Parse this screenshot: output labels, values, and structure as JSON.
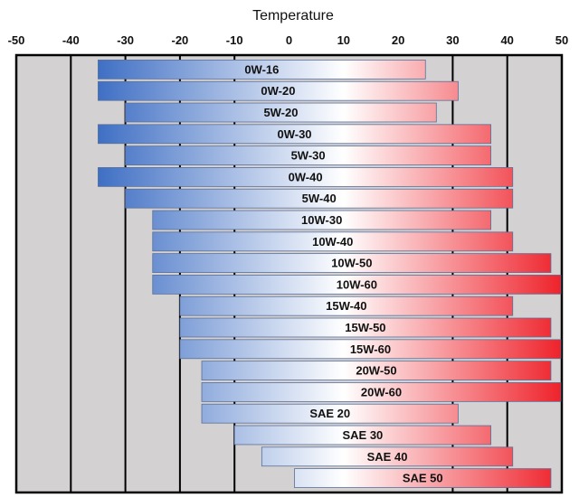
{
  "chart_data": {
    "type": "bar",
    "orientation": "horizontal-range",
    "title": "Temperature",
    "xlim": [
      -50,
      50
    ],
    "x_ticks": [
      -50,
      -40,
      -30,
      -20,
      -10,
      0,
      10,
      20,
      30,
      40,
      50
    ],
    "x_tick_labels": [
      "-50",
      "-40",
      "-30",
      "-20",
      "-10",
      "0",
      "10",
      "20",
      "30",
      "40",
      "50"
    ],
    "gridlines": [
      -40,
      -30,
      -20,
      -10,
      30,
      40
    ],
    "colors": {
      "cold": "#3f6fc4",
      "neutral": "#ffffff",
      "hot": "#ee1c25",
      "frame": "#000000",
      "background": "#d3d1d1"
    },
    "grades": [
      {
        "name": "0W-16",
        "low": -35,
        "high": 25
      },
      {
        "name": "0W-20",
        "low": -35,
        "high": 31
      },
      {
        "name": "5W-20",
        "low": -30,
        "high": 27
      },
      {
        "name": "0W-30",
        "low": -35,
        "high": 37
      },
      {
        "name": "5W-30",
        "low": -30,
        "high": 37
      },
      {
        "name": "0W-40",
        "low": -35,
        "high": 41
      },
      {
        "name": "5W-40",
        "low": -30,
        "high": 41
      },
      {
        "name": "10W-30",
        "low": -25,
        "high": 37
      },
      {
        "name": "10W-40",
        "low": -25,
        "high": 41
      },
      {
        "name": "10W-50",
        "low": -25,
        "high": 48
      },
      {
        "name": "10W-60",
        "low": -25,
        "high": 51
      },
      {
        "name": "15W-40",
        "low": -20,
        "high": 41
      },
      {
        "name": "15W-50",
        "low": -20,
        "high": 48
      },
      {
        "name": "15W-60",
        "low": -20,
        "high": 51
      },
      {
        "name": "20W-50",
        "low": -16,
        "high": 48
      },
      {
        "name": "20W-60",
        "low": -16,
        "high": 51
      },
      {
        "name": "SAE 20",
        "low": -16,
        "high": 31
      },
      {
        "name": "SAE 30",
        "low": -10,
        "high": 37
      },
      {
        "name": "SAE 40",
        "low": -5,
        "high": 41
      },
      {
        "name": "SAE 50",
        "low": 1,
        "high": 48
      }
    ]
  }
}
